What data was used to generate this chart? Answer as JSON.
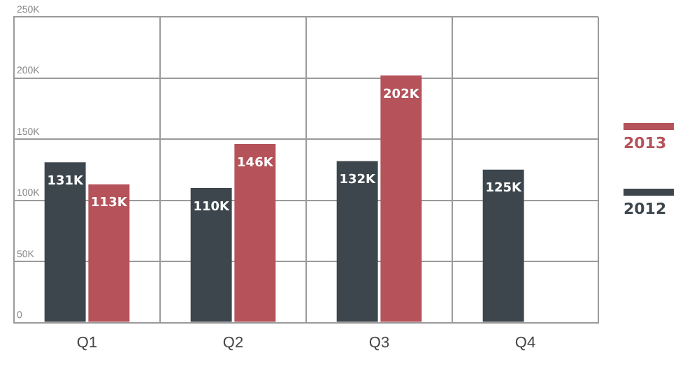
{
  "chart_data": {
    "type": "bar",
    "categories": [
      "Q1",
      "Q2",
      "Q3",
      "Q4"
    ],
    "series": [
      {
        "name": "2012",
        "color": "#3c464c",
        "values": [
          131000,
          110000,
          132000,
          125000
        ],
        "value_labels": [
          "131K",
          "110K",
          "132K",
          "125K"
        ]
      },
      {
        "name": "2013",
        "color": "#b5525a",
        "values": [
          113000,
          146000,
          202000,
          null
        ],
        "value_labels": [
          "113K",
          "146K",
          "202K",
          null
        ]
      }
    ],
    "ylim": [
      0,
      250000
    ],
    "yticks": [
      {
        "value": 0,
        "label": "0"
      },
      {
        "value": 50000,
        "label": "50K"
      },
      {
        "value": 100000,
        "label": "100K"
      },
      {
        "value": 150000,
        "label": "150K"
      },
      {
        "value": 200000,
        "label": "200K"
      },
      {
        "value": 250000,
        "label": "250K"
      }
    ],
    "grid": true,
    "legend": "right"
  }
}
